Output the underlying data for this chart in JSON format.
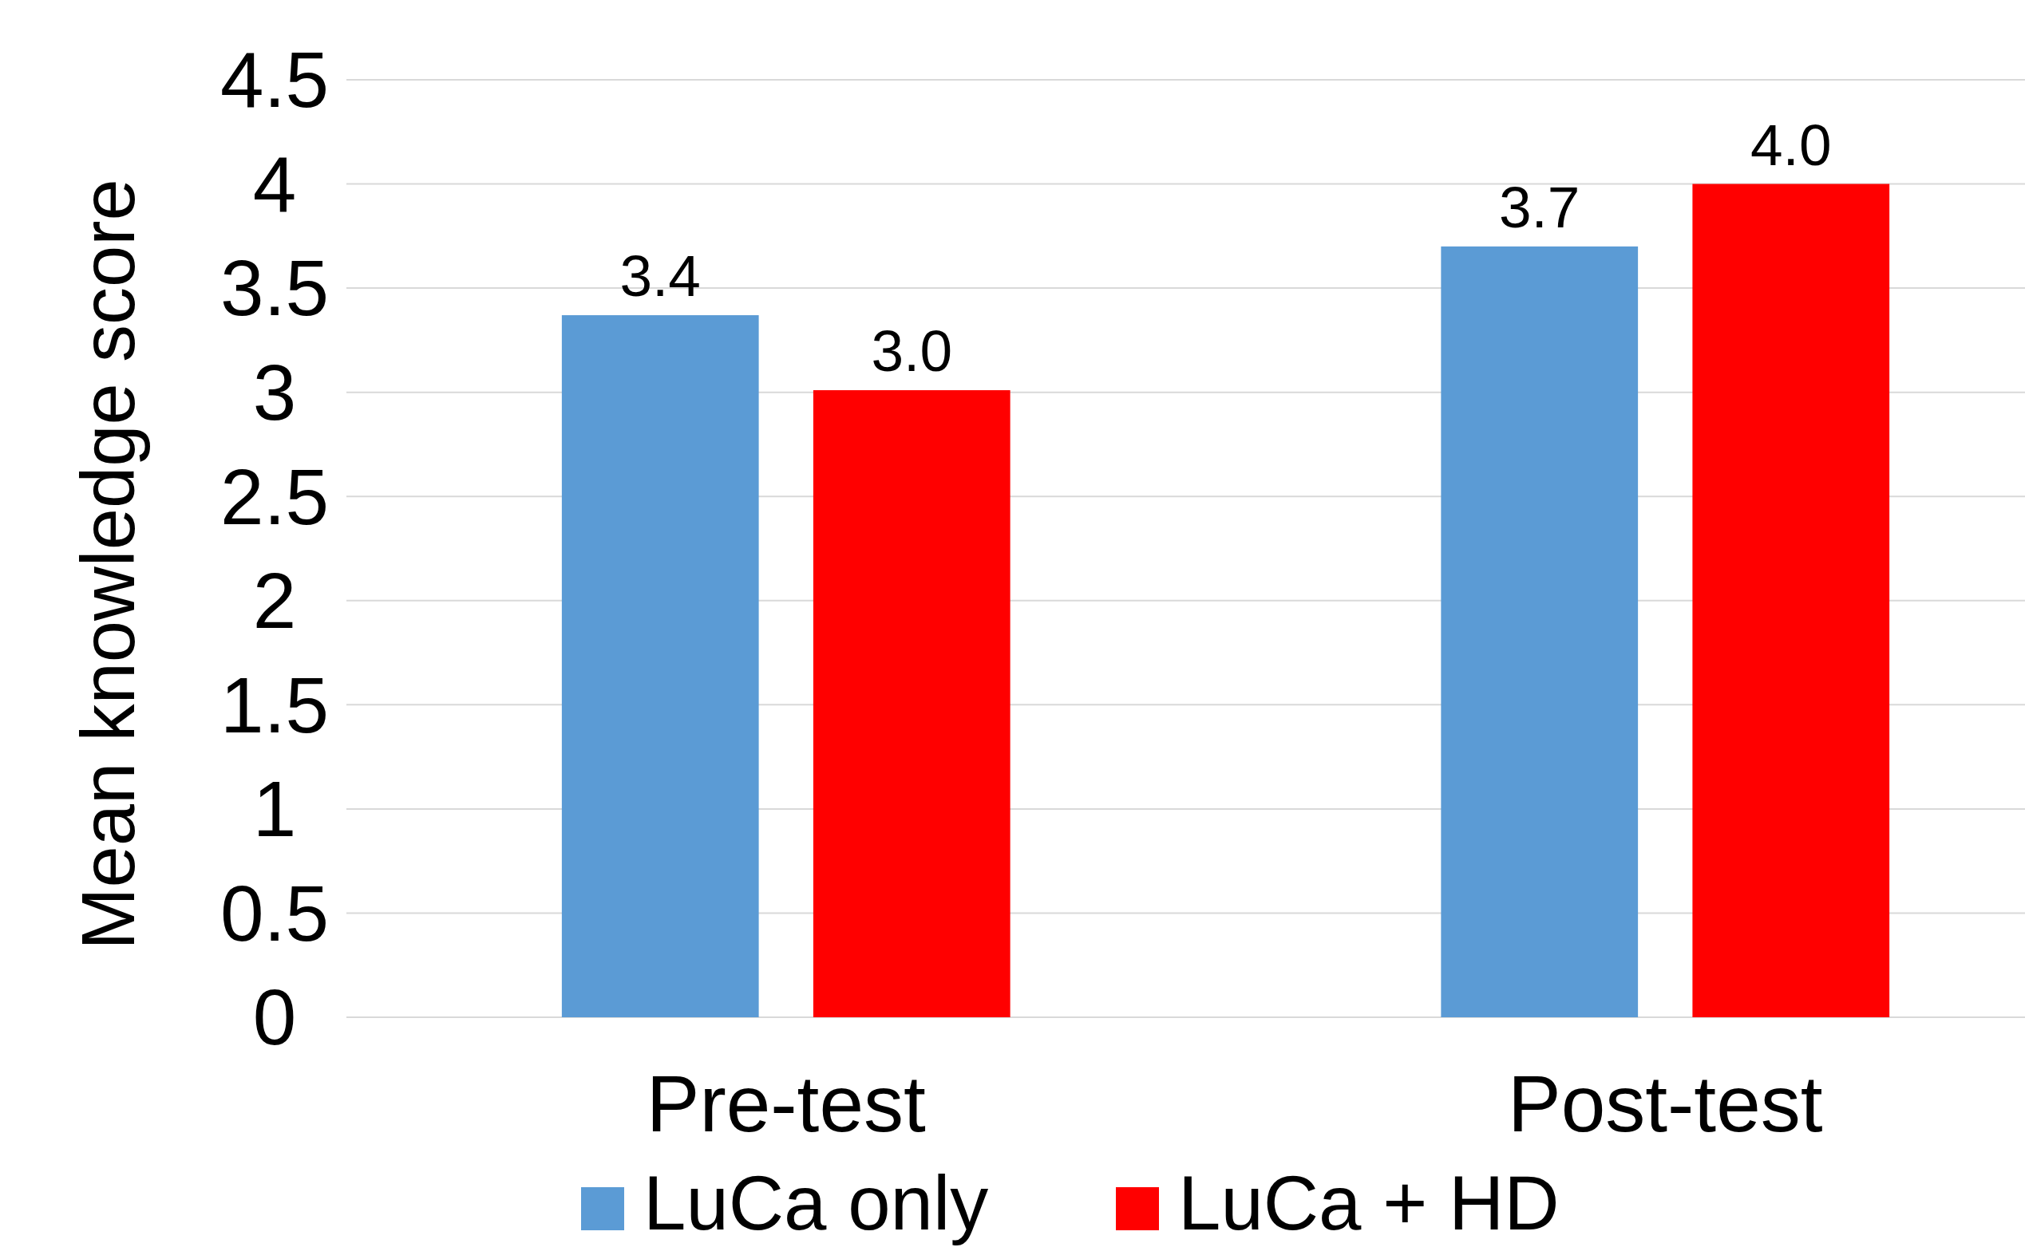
{
  "chart_data": {
    "type": "bar",
    "ylabel": "Mean knowledge score",
    "categories": [
      "Pre-test",
      "Post-test"
    ],
    "series": [
      {
        "name": "LuCa only",
        "color": "#5b9bd5",
        "values": [
          3.37,
          3.7
        ],
        "value_labels": [
          "3.4",
          "3.7"
        ]
      },
      {
        "name": "LuCa + HD",
        "color": "#ff0000",
        "values": [
          3.01,
          4.0
        ],
        "value_labels": [
          "3.0",
          "4.0"
        ]
      }
    ],
    "ylim": [
      0,
      4.5
    ],
    "yticks": [
      0,
      0.5,
      1,
      1.5,
      2,
      2.5,
      3,
      3.5,
      4,
      4.5
    ],
    "grid": "y",
    "legend": "bottom"
  }
}
